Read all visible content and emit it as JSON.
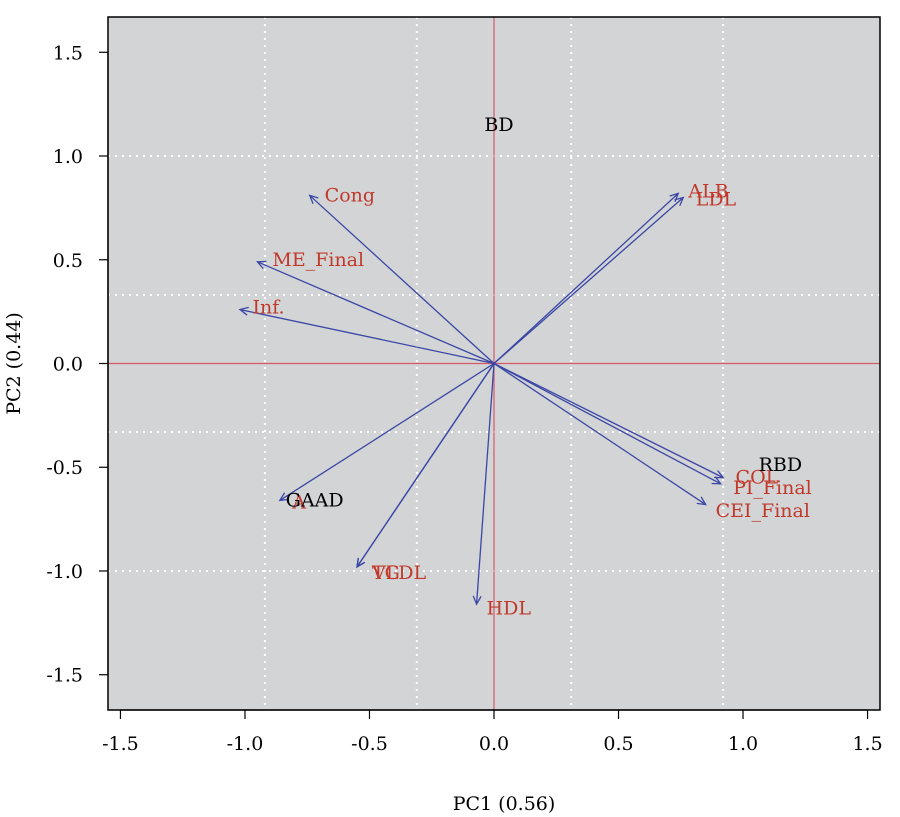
{
  "chart_data": {
    "type": "scatter",
    "subtype": "pca-biplot",
    "xlabel": "PC1 (0.56)",
    "ylabel": "PC2 (0.44)",
    "xlim": [
      -1.55,
      1.55
    ],
    "ylim": [
      -1.67,
      1.67
    ],
    "xticks": [
      -1.5,
      -1.0,
      -0.5,
      0.0,
      0.5,
      1.0,
      1.5
    ],
    "yticks": [
      -1.5,
      -1.0,
      -0.5,
      0.0,
      0.5,
      1.0,
      1.5
    ],
    "xtick_labels": [
      "-1.5",
      "-1.0",
      "-0.5",
      "0.0",
      "0.5",
      "1.0",
      "1.5"
    ],
    "ytick_labels": [
      "-1.5",
      "-1.0",
      "-0.5",
      "0.0",
      "0.5",
      "1.0",
      "1.5"
    ],
    "grid_x": [
      -0.92,
      -0.31,
      0.31,
      0.92
    ],
    "grid_y": [
      1.0,
      0.33,
      -0.33,
      -1.0
    ],
    "reference_lines": {
      "x": 0,
      "y": 0
    },
    "loadings": [
      {
        "name": "Cong",
        "x": -0.74,
        "y": 0.81,
        "lx": -0.68,
        "ly": 0.81
      },
      {
        "name": "ME_Final",
        "x": -0.95,
        "y": 0.49,
        "lx": -0.89,
        "ly": 0.5
      },
      {
        "name": "Inf.",
        "x": -1.02,
        "y": 0.26,
        "lx": -0.97,
        "ly": 0.27
      },
      {
        "name": "ALB",
        "x": 0.74,
        "y": 0.82,
        "lx": 0.78,
        "ly": 0.83
      },
      {
        "name": "LDL",
        "x": 0.76,
        "y": 0.8,
        "lx": 0.81,
        "ly": 0.79
      },
      {
        "name": "COL",
        "x": 0.92,
        "y": -0.55,
        "lx": 0.97,
        "ly": -0.55
      },
      {
        "name": "PI_Final",
        "x": 0.91,
        "y": -0.58,
        "lx": 0.96,
        "ly": -0.6
      },
      {
        "name": "CEI_Final",
        "x": 0.85,
        "y": -0.68,
        "lx": 0.89,
        "ly": -0.71
      },
      {
        "name": "HDL",
        "x": -0.07,
        "y": -1.16,
        "lx": -0.03,
        "ly": -1.18
      },
      {
        "name": "TG",
        "x": -0.55,
        "y": -0.98,
        "lx": -0.49,
        "ly": -1.01
      },
      {
        "name": "VLDL",
        "x": -0.55,
        "y": -0.98,
        "lx": -0.49,
        "ly": -1.01
      },
      {
        "name": "A",
        "x": -0.86,
        "y": -0.66,
        "lx": -0.81,
        "ly": -0.67
      }
    ],
    "group_labels": [
      {
        "name": "BD",
        "x": 0.02,
        "y": 1.15
      },
      {
        "name": "RBD",
        "x": 1.15,
        "y": -0.49
      },
      {
        "name": "GAAD",
        "x": -0.72,
        "y": -0.66
      }
    ],
    "colors": {
      "panel_bg": "#d3d4d5",
      "grid": "#ffffff",
      "reference": "#d45a6a",
      "arrow": "#3a47a6",
      "loading_text": "#c0392b",
      "group_text": "#000000"
    }
  }
}
